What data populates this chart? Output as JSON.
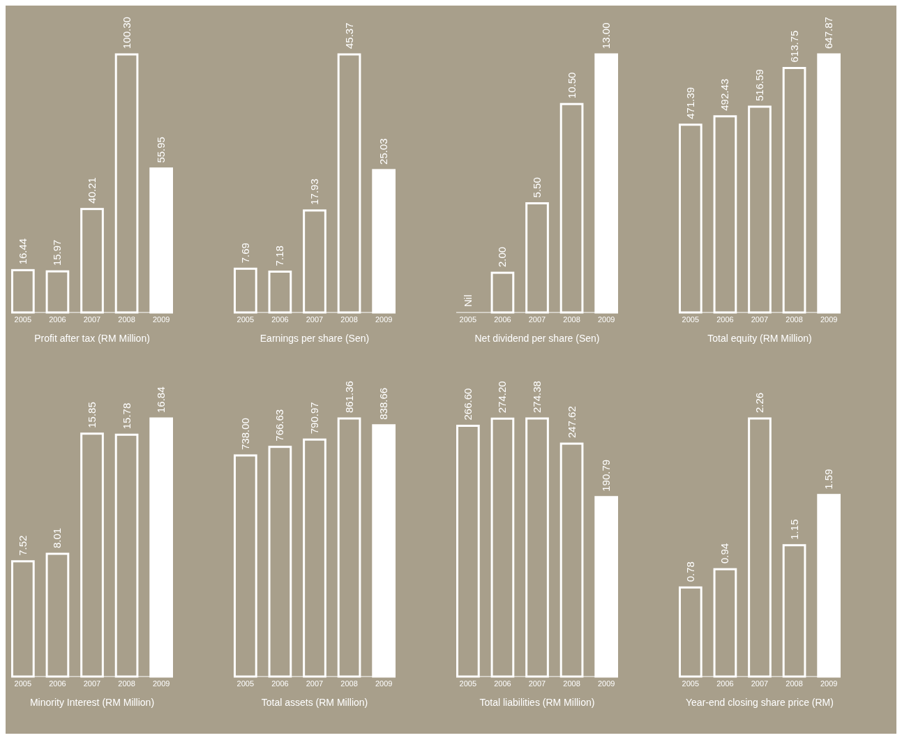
{
  "chart_data": [
    {
      "type": "bar",
      "title": "Profit after tax (RM Million)",
      "categories": [
        "2005",
        "2006",
        "2007",
        "2008",
        "2009"
      ],
      "values": [
        16.44,
        15.97,
        40.21,
        100.3,
        55.95
      ],
      "value_labels": [
        "16.44",
        "15.97",
        "40.21",
        "100.30",
        "55.95"
      ],
      "colors": [
        "#a89f8b",
        "#a89f8b",
        "#a89f8b",
        "#a89f8b",
        "#ffffff"
      ]
    },
    {
      "type": "bar",
      "title": "Earnings per share (Sen)",
      "categories": [
        "2005",
        "2006",
        "2007",
        "2008",
        "2009"
      ],
      "values": [
        7.69,
        7.18,
        17.93,
        45.37,
        25.03
      ],
      "value_labels": [
        "7.69",
        "7.18",
        "17.93",
        "45.37",
        "25.03"
      ],
      "colors": [
        "#a89f8b",
        "#a89f8b",
        "#a89f8b",
        "#a89f8b",
        "#ffffff"
      ]
    },
    {
      "type": "bar",
      "title": "Net dividend per share (Sen)",
      "categories": [
        "2005",
        "2006",
        "2007",
        "2008",
        "2009"
      ],
      "values": [
        0,
        2,
        5.5,
        10.5,
        13
      ],
      "value_labels": [
        "Nil",
        "2.00",
        "5.50",
        "10.50",
        "13.00"
      ],
      "colors": [
        "#a89f8b",
        "#a89f8b",
        "#a89f8b",
        "#a89f8b",
        "#ffffff"
      ]
    },
    {
      "type": "bar",
      "title": "Total equity (RM Million)",
      "categories": [
        "2005",
        "2006",
        "2007",
        "2008",
        "2009"
      ],
      "values": [
        471.39,
        492.43,
        516.59,
        613.75,
        647.87
      ],
      "value_labels": [
        "471.39",
        "492.43",
        "516.59",
        "613.75",
        "647.87"
      ],
      "colors": [
        "#a89f8b",
        "#a89f8b",
        "#a89f8b",
        "#a89f8b",
        "#ffffff"
      ]
    },
    {
      "type": "bar",
      "title": "Minority Interest (RM Million)",
      "categories": [
        "2005",
        "2006",
        "2007",
        "2008",
        "2009"
      ],
      "values": [
        7.52,
        8.01,
        15.85,
        15.78,
        16.84
      ],
      "value_labels": [
        "7.52",
        "8.01",
        "15.85",
        "15.78",
        "16.84"
      ],
      "colors": [
        "#a89f8b",
        "#a89f8b",
        "#a89f8b",
        "#a89f8b",
        "#ffffff"
      ]
    },
    {
      "type": "bar",
      "title": "Total assets (RM Million)",
      "categories": [
        "2005",
        "2006",
        "2007",
        "2008",
        "2009"
      ],
      "values": [
        738,
        766.63,
        790.97,
        861.36,
        838.66
      ],
      "value_labels": [
        "738.00",
        "766.63",
        "790.97",
        "861.36",
        "838.66"
      ],
      "colors": [
        "#a89f8b",
        "#a89f8b",
        "#a89f8b",
        "#a89f8b",
        "#ffffff"
      ]
    },
    {
      "type": "bar",
      "title": "Total liabilities (RM Million)",
      "categories": [
        "2005",
        "2006",
        "2007",
        "2008",
        "2009"
      ],
      "values": [
        266.6,
        274.2,
        274.38,
        247.62,
        190.79
      ],
      "value_labels": [
        "266.60",
        "274.20",
        "274.38",
        "247.62",
        "190.79"
      ],
      "colors": [
        "#a89f8b",
        "#a89f8b",
        "#a89f8b",
        "#a89f8b",
        "#ffffff"
      ]
    },
    {
      "type": "bar",
      "title": "Year-end closing share price (RM)",
      "categories": [
        "2005",
        "2006",
        "2007",
        "2008",
        "2009"
      ],
      "values": [
        0.78,
        0.94,
        2.26,
        1.15,
        1.59
      ],
      "value_labels": [
        "0.78",
        "0.94",
        "2.26",
        "1.15",
        "1.59"
      ],
      "colors": [
        "#a89f8b",
        "#a89f8b",
        "#a89f8b",
        "#a89f8b",
        "#ffffff"
      ]
    }
  ]
}
